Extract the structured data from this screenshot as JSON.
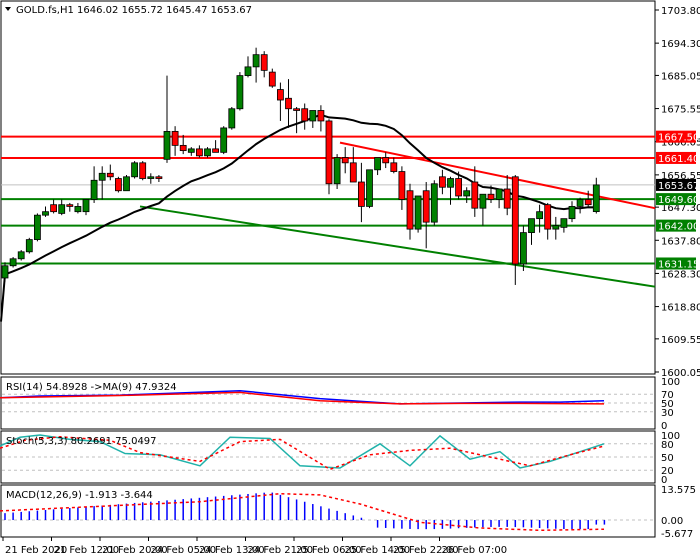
{
  "header": {
    "symbol": "GOLD.fs,H1",
    "ohlc": "1646.02 1655.72 1645.47 1653.67",
    "text": "GOLD.fs,H1  1646.02 1655.72 1645.47 1653.67"
  },
  "colors": {
    "bull": "#008000",
    "bear": "#ff0000",
    "resistance": "#ff0000",
    "support": "#008000",
    "ma": "#000000",
    "rsi": "#0000ff",
    "rsi_ma": "#ff0000",
    "stoch_main": "#20b2aa",
    "stoch_signal": "#ff0000",
    "macd_hist": "#0000ff",
    "macd_signal": "#ff0000",
    "current_price_bg": "#000000"
  },
  "price_axis": {
    "ticks": [
      "1703.80",
      "1694.30",
      "1685.05",
      "1675.55",
      "1666.05",
      "1656.55",
      "1647.30",
      "1637.80",
      "1628.30",
      "1618.80",
      "1609.55",
      "1600.05"
    ],
    "level_tags": [
      {
        "value": "1667.50",
        "type": "resistance"
      },
      {
        "value": "1661.40",
        "type": "resistance"
      },
      {
        "value": "1653.67",
        "type": "current"
      },
      {
        "value": "1649.60",
        "type": "support"
      },
      {
        "value": "1642.00",
        "type": "support"
      },
      {
        "value": "1631.15",
        "type": "support"
      }
    ]
  },
  "time_axis": {
    "labels": [
      "21 Feb 2020",
      "21 Feb 12:00",
      "21 Feb 20:00",
      "24 Feb 05:00",
      "24 Feb 13:00",
      "24 Feb 21:00",
      "25 Feb 06:00",
      "25 Feb 14:00",
      "25 Feb 22:00",
      "26 Feb 07:00"
    ]
  },
  "indicators": {
    "rsi": {
      "label": "RSI(14) 54.8928  ->MA(9) 47.9324",
      "ticks": [
        "100",
        "70",
        "50",
        "30",
        "0"
      ]
    },
    "stoch": {
      "label": "Stoch(5,3,3) 80.2691 75.0497",
      "ticks": [
        "100",
        "80",
        "50",
        "20",
        "0"
      ]
    },
    "macd": {
      "label": "MACD(12,26,9) -1.913 -3.644",
      "ticks": [
        "13.575",
        "0.00",
        "-5.677"
      ]
    }
  },
  "chart_data": {
    "type": "candlestick",
    "title": "GOLD.fs,H1",
    "last_ohlc": {
      "open": 1646.02,
      "high": 1655.72,
      "low": 1645.47,
      "close": 1653.67
    },
    "ylim": [
      1600.05,
      1703.8
    ],
    "horizontal_levels": {
      "resistance": [
        1667.5,
        1661.4
      ],
      "support": [
        1649.6,
        1642.0,
        1631.15
      ],
      "current": 1653.67
    },
    "candles": [
      [
        1627.0,
        1631.5,
        1626.0,
        1630.5
      ],
      [
        1630.5,
        1633.0,
        1630.0,
        1632.5
      ],
      [
        1632.5,
        1635.0,
        1632.0,
        1634.5
      ],
      [
        1634.5,
        1638.5,
        1634.0,
        1638.0
      ],
      [
        1638.0,
        1645.5,
        1637.5,
        1645.0
      ],
      [
        1645.0,
        1647.5,
        1644.5,
        1646.0
      ],
      [
        1648.0,
        1649.5,
        1645.5,
        1646.0
      ],
      [
        1645.5,
        1649.5,
        1645.0,
        1648.0
      ],
      [
        1648.0,
        1648.5,
        1646.0,
        1647.5
      ],
      [
        1646.0,
        1648.5,
        1645.5,
        1647.5
      ],
      [
        1646.0,
        1648.0,
        1645.0,
        1649.5
      ],
      [
        1649.5,
        1659.0,
        1648.5,
        1655.0
      ],
      [
        1655.0,
        1659.0,
        1649.5,
        1657.0
      ],
      [
        1657.0,
        1659.5,
        1655.0,
        1656.0
      ],
      [
        1655.5,
        1656.0,
        1651.5,
        1652.0
      ],
      [
        1652.0,
        1656.5,
        1652.0,
        1656.0
      ],
      [
        1656.0,
        1660.5,
        1655.5,
        1660.0
      ],
      [
        1660.0,
        1660.5,
        1655.0,
        1655.5
      ],
      [
        1655.5,
        1657.0,
        1654.0,
        1656.0
      ],
      [
        1656.0,
        1656.5,
        1654.5,
        1655.5
      ],
      [
        1661.0,
        1685.0,
        1660.0,
        1669.0
      ],
      [
        1669.0,
        1670.5,
        1662.0,
        1665.0
      ],
      [
        1665.0,
        1668.0,
        1662.5,
        1663.5
      ],
      [
        1663.0,
        1664.5,
        1662.0,
        1664.0
      ],
      [
        1664.0,
        1665.0,
        1661.5,
        1662.0
      ],
      [
        1662.0,
        1664.5,
        1661.5,
        1664.0
      ],
      [
        1664.0,
        1666.5,
        1663.0,
        1663.0
      ],
      [
        1663.0,
        1670.5,
        1662.5,
        1670.0
      ],
      [
        1670.0,
        1676.0,
        1669.5,
        1675.5
      ],
      [
        1675.5,
        1686.0,
        1675.0,
        1685.0
      ],
      [
        1685.0,
        1690.5,
        1684.5,
        1687.5
      ],
      [
        1687.5,
        1693.0,
        1683.0,
        1691.0
      ],
      [
        1691.0,
        1692.0,
        1684.5,
        1686.5
      ],
      [
        1686.0,
        1687.0,
        1681.5,
        1682.0
      ],
      [
        1681.0,
        1683.0,
        1672.0,
        1678.0
      ],
      [
        1678.5,
        1684.0,
        1670.0,
        1675.5
      ],
      [
        1675.5,
        1676.0,
        1668.5,
        1675.0
      ],
      [
        1675.5,
        1677.0,
        1669.5,
        1672.0
      ],
      [
        1672.0,
        1675.0,
        1670.0,
        1675.0
      ],
      [
        1675.0,
        1676.5,
        1669.0,
        1672.0
      ],
      [
        1672.0,
        1672.5,
        1651.0,
        1654.0
      ],
      [
        1654.0,
        1662.5,
        1652.5,
        1661.5
      ],
      [
        1661.5,
        1664.5,
        1657.0,
        1660.0
      ],
      [
        1660.0,
        1664.5,
        1654.5,
        1654.5
      ],
      [
        1654.5,
        1660.0,
        1643.0,
        1647.5
      ],
      [
        1647.5,
        1658.0,
        1647.0,
        1658.0
      ],
      [
        1658.0,
        1660.0,
        1656.5,
        1661.5
      ],
      [
        1661.5,
        1663.0,
        1658.5,
        1660.0
      ],
      [
        1660.0,
        1661.5,
        1657.0,
        1657.5
      ],
      [
        1657.5,
        1659.0,
        1646.5,
        1649.5
      ],
      [
        1652.0,
        1654.0,
        1638.0,
        1641.0
      ],
      [
        1641.0,
        1649.5,
        1640.0,
        1650.5
      ],
      [
        1652.0,
        1654.5,
        1635.5,
        1643.0
      ],
      [
        1643.0,
        1655.0,
        1642.0,
        1654.0
      ],
      [
        1656.0,
        1658.0,
        1651.0,
        1653.0
      ],
      [
        1653.0,
        1656.0,
        1648.0,
        1655.5
      ],
      [
        1655.5,
        1657.5,
        1649.5,
        1650.5
      ],
      [
        1650.5,
        1653.0,
        1648.5,
        1652.0
      ],
      [
        1654.5,
        1659.0,
        1644.5,
        1647.0
      ],
      [
        1647.0,
        1651.0,
        1642.0,
        1651.0
      ],
      [
        1651.0,
        1653.5,
        1648.5,
        1649.5
      ],
      [
        1649.5,
        1652.0,
        1647.0,
        1652.5
      ],
      [
        1652.5,
        1656.5,
        1645.0,
        1647.0
      ],
      [
        1656.0,
        1656.5,
        1625.0,
        1631.0
      ],
      [
        1631.0,
        1642.0,
        1629.0,
        1640.0
      ],
      [
        1640.0,
        1643.0,
        1636.5,
        1644.0
      ],
      [
        1644.0,
        1648.0,
        1640.0,
        1646.0
      ],
      [
        1648.0,
        1648.5,
        1638.0,
        1641.0
      ],
      [
        1641.0,
        1644.5,
        1638.0,
        1642.0
      ],
      [
        1641.5,
        1644.0,
        1640.0,
        1644.0
      ],
      [
        1644.0,
        1649.0,
        1643.0,
        1647.5
      ],
      [
        1647.5,
        1650.0,
        1645.5,
        1649.5
      ],
      [
        1649.5,
        1652.0,
        1647.5,
        1648.0
      ],
      [
        1646.02,
        1655.72,
        1645.47,
        1653.67
      ]
    ],
    "ma_line": "black moving average",
    "trendlines": [
      {
        "color": "red",
        "from": [
          1665.5,
          42
        ],
        "to": [
          1648.0,
          74
        ]
      },
      {
        "color": "green",
        "from": [
          1647.5,
          17
        ],
        "to": [
          1624.5,
          80
        ]
      }
    ],
    "rsi": {
      "rsi_last": 54.8928,
      "ma_last": 47.9324,
      "range": [
        0,
        100
      ],
      "levels": [
        70,
        50,
        30
      ]
    },
    "stoch": {
      "main_last": 80.2691,
      "signal_last": 75.0497,
      "range": [
        0,
        100
      ],
      "levels": [
        80,
        50,
        20
      ]
    },
    "macd": {
      "macd_last": -1.913,
      "signal_last": -3.644,
      "range": [
        -5.677,
        13.575
      ]
    }
  }
}
